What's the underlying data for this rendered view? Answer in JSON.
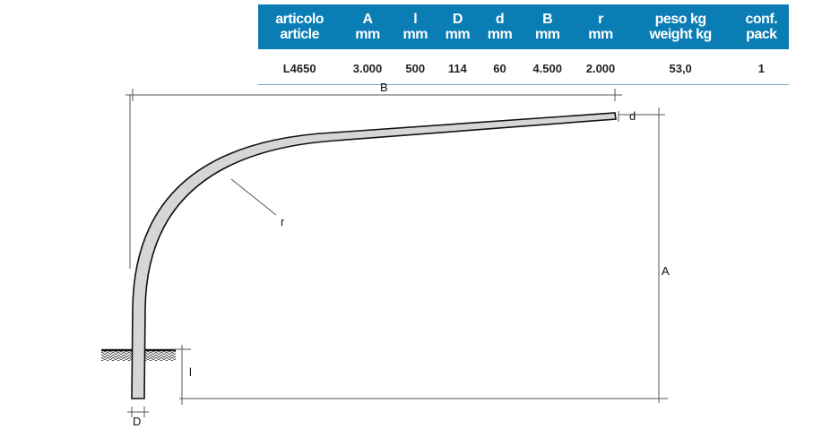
{
  "table": {
    "headers": [
      [
        "articolo",
        "article"
      ],
      [
        "A",
        "mm"
      ],
      [
        "l",
        "mm"
      ],
      [
        "D",
        "mm"
      ],
      [
        "d",
        "mm"
      ],
      [
        "B",
        "mm"
      ],
      [
        "r",
        "mm"
      ],
      [
        "peso kg",
        "weight kg"
      ],
      [
        "conf.",
        "pack"
      ]
    ],
    "row": [
      "L4650",
      "3.000",
      "500",
      "114",
      "60",
      "4.500",
      "2.000",
      "53,0",
      "1"
    ]
  },
  "diagram": {
    "labels": {
      "B": "B",
      "A": "A",
      "d": "d",
      "r": "r",
      "l": "l",
      "D": "D"
    }
  },
  "colors": {
    "header": "#0b7db5"
  }
}
